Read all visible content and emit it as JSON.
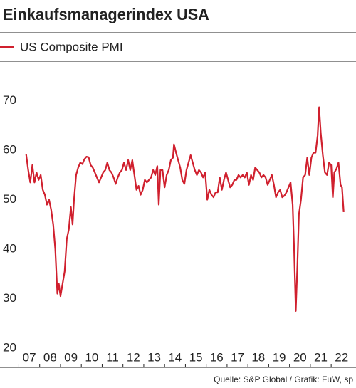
{
  "chart_data": {
    "type": "line",
    "title": "Einkaufsmanagerindex USA",
    "source": "Quelle: S&P Global / Grafik: FuW, sp",
    "xlim": [
      2006.95,
      2022.85
    ],
    "ylim": [
      20,
      78
    ],
    "yticks": [
      20,
      30,
      40,
      50,
      60,
      70
    ],
    "xticks": [
      {
        "value": 2007,
        "label": "07"
      },
      {
        "value": 2008,
        "label": "08"
      },
      {
        "value": 2009,
        "label": "09"
      },
      {
        "value": 2010,
        "label": "10"
      },
      {
        "value": 2011,
        "label": "11"
      },
      {
        "value": 2012,
        "label": "12"
      },
      {
        "value": 2013,
        "label": "13"
      },
      {
        "value": 2014,
        "label": "14"
      },
      {
        "value": 2015,
        "label": "15"
      },
      {
        "value": 2016,
        "label": "16"
      },
      {
        "value": 2017,
        "label": "17"
      },
      {
        "value": 2018,
        "label": "18"
      },
      {
        "value": 2019,
        "label": "19"
      },
      {
        "value": 2020,
        "label": "20"
      },
      {
        "value": 2021,
        "label": "21"
      },
      {
        "value": 2022,
        "label": "22"
      }
    ],
    "x": [
      2007.35,
      2007.45,
      2007.55,
      2007.65,
      2007.75,
      2007.85,
      2007.95,
      2008.05,
      2008.15,
      2008.25,
      2008.35,
      2008.45,
      2008.55,
      2008.65,
      2008.75,
      2008.85,
      2008.92,
      2009.0,
      2009.1,
      2009.2,
      2009.3,
      2009.4,
      2009.5,
      2009.58,
      2009.65,
      2009.75,
      2009.85,
      2009.95,
      2010.05,
      2010.15,
      2010.25,
      2010.35,
      2010.45,
      2010.55,
      2010.65,
      2010.75,
      2010.85,
      2010.95,
      2011.05,
      2011.15,
      2011.25,
      2011.35,
      2011.45,
      2011.55,
      2011.65,
      2011.75,
      2011.85,
      2011.95,
      2012.05,
      2012.15,
      2012.25,
      2012.35,
      2012.45,
      2012.55,
      2012.65,
      2012.75,
      2012.85,
      2012.95,
      2013.05,
      2013.15,
      2013.25,
      2013.35,
      2013.45,
      2013.55,
      2013.65,
      2013.72,
      2013.8,
      2013.9,
      2014.0,
      2014.1,
      2014.2,
      2014.3,
      2014.4,
      2014.45,
      2014.55,
      2014.65,
      2014.75,
      2014.85,
      2014.95,
      2015.05,
      2015.15,
      2015.25,
      2015.35,
      2015.45,
      2015.55,
      2015.65,
      2015.75,
      2015.85,
      2015.95,
      2016.05,
      2016.15,
      2016.25,
      2016.35,
      2016.45,
      2016.55,
      2016.65,
      2016.75,
      2016.85,
      2016.95,
      2017.05,
      2017.15,
      2017.25,
      2017.35,
      2017.45,
      2017.55,
      2017.65,
      2017.75,
      2017.85,
      2017.95,
      2018.05,
      2018.15,
      2018.25,
      2018.35,
      2018.45,
      2018.55,
      2018.65,
      2018.75,
      2018.85,
      2018.95,
      2019.05,
      2019.15,
      2019.25,
      2019.35,
      2019.45,
      2019.55,
      2019.65,
      2019.75,
      2019.85,
      2019.95,
      2020.05,
      2020.15,
      2020.22,
      2020.3,
      2020.38,
      2020.45,
      2020.55,
      2020.65,
      2020.75,
      2020.85,
      2020.95,
      2021.05,
      2021.15,
      2021.25,
      2021.35,
      2021.42,
      2021.5,
      2021.6,
      2021.7,
      2021.8,
      2021.9,
      2022.0,
      2022.08,
      2022.15,
      2022.25,
      2022.35,
      2022.45,
      2022.52,
      2022.6
    ],
    "series": [
      {
        "name": "US Composite PMI",
        "color": "#d0202e",
        "values": [
          59.2,
          56,
          53.5,
          57,
          53.5,
          55.5,
          54,
          55,
          52,
          51,
          49,
          50,
          48,
          45,
          40,
          31,
          33,
          30.5,
          33,
          35.5,
          42,
          44,
          48.5,
          45,
          50,
          55,
          56.5,
          57.5,
          57.2,
          58.2,
          58.7,
          58.6,
          57,
          56.5,
          55.5,
          54.5,
          53.5,
          54.5,
          55.5,
          56,
          57.5,
          56,
          55.5,
          54.5,
          53.2,
          54.5,
          55.5,
          56,
          57.5,
          56,
          58,
          56,
          58,
          55,
          52,
          52.8,
          51,
          52,
          54,
          53.5,
          54,
          54.5,
          56,
          55,
          56.8,
          49,
          56,
          56,
          52.5,
          55,
          56,
          58,
          58.5,
          61.2,
          59.5,
          58,
          56.5,
          54,
          53.2,
          56,
          57.5,
          59,
          57.5,
          56,
          55,
          56,
          55.5,
          54.5,
          55.5,
          50,
          52,
          51,
          50.5,
          51.5,
          51.5,
          54.5,
          52,
          54,
          55.5,
          54,
          52.5,
          53,
          54,
          54,
          55,
          54.5,
          55,
          54.5,
          55.5,
          53,
          55,
          54,
          56.5,
          56,
          55.5,
          54.5,
          55,
          54.5,
          53,
          54,
          55,
          53,
          50.5,
          51.5,
          52,
          50.5,
          50.8,
          51.5,
          52.5,
          53.5,
          49,
          40,
          27.5,
          37,
          47,
          50,
          54.5,
          55,
          58.5,
          55,
          58.5,
          59.5,
          59.5,
          63,
          68.7,
          63.5,
          59,
          55.5,
          55,
          57.5,
          57,
          50.5,
          55.5,
          56.2,
          57.5,
          53,
          52.5,
          47.5
        ]
      }
    ]
  }
}
